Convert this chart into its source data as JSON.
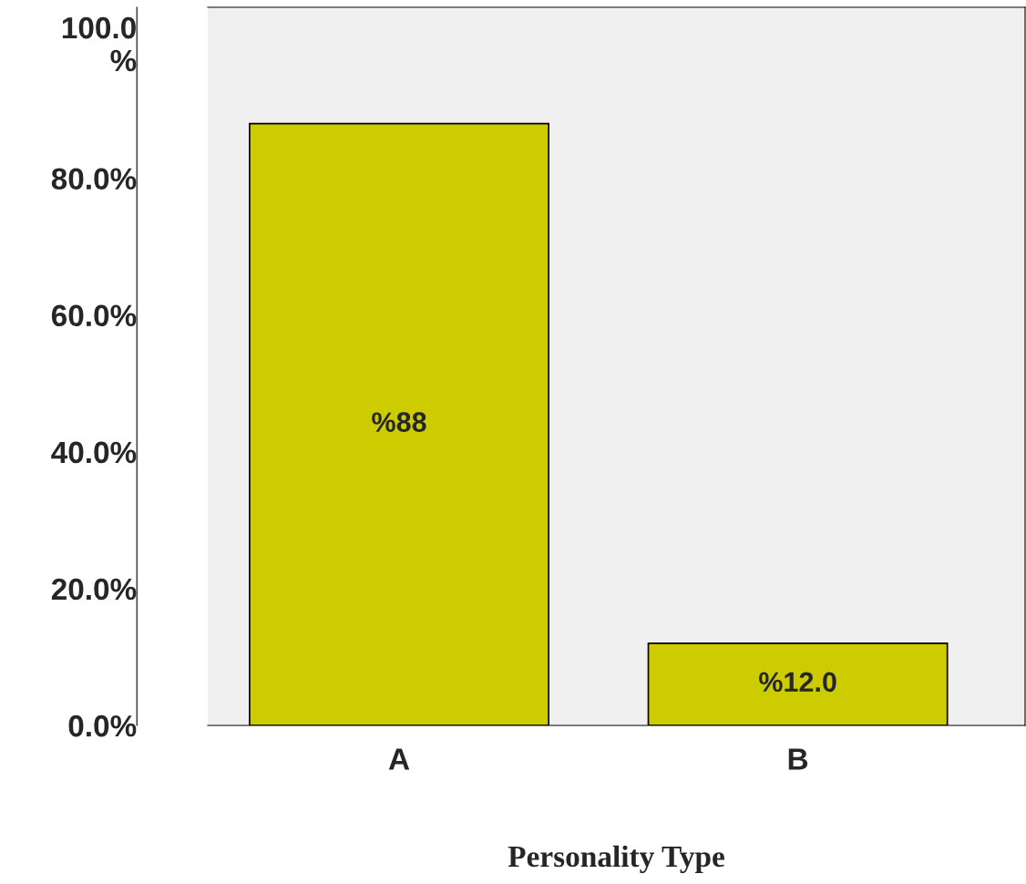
{
  "chart_data": {
    "type": "bar",
    "xlabel": "Personality Type",
    "categories": [
      "A",
      "B"
    ],
    "values": [
      88,
      12
    ],
    "value_labels": [
      "%88",
      "%12.0"
    ],
    "color": "#cccc00",
    "ylim": [
      0,
      105
    ],
    "yticks": [
      {
        "value": 0,
        "label": "0.0%"
      },
      {
        "value": 20,
        "label": "20.0%"
      },
      {
        "value": 40,
        "label": "40.0%"
      },
      {
        "value": 60,
        "label": "60.0%"
      },
      {
        "value": 80,
        "label": "80.0%"
      },
      {
        "value": 100,
        "label": "100.0\n%"
      }
    ],
    "grid": false,
    "legend": false
  }
}
